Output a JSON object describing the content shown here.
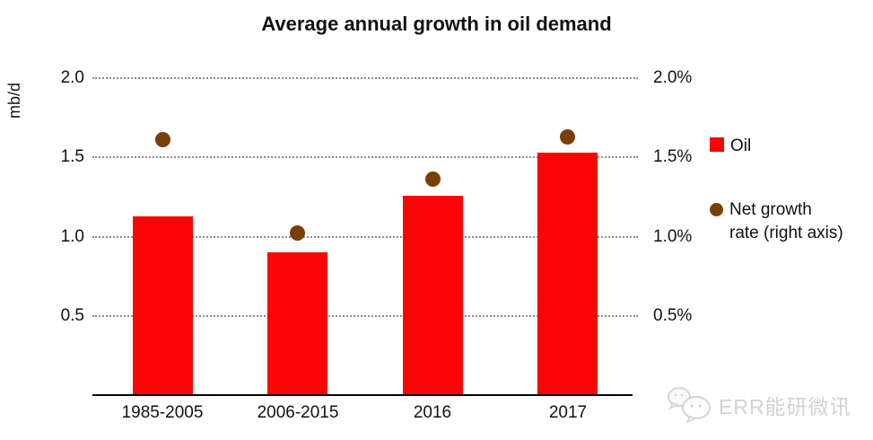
{
  "title": "Average annual growth in oil demand",
  "legend": {
    "oil_label": "Oil",
    "net_growth_line1": "Net growth",
    "net_growth_line2": "rate (right axis)"
  },
  "watermark": {
    "text": "ERR能研微讯",
    "logo": "wechat-icon"
  },
  "colors": {
    "bar": "#fa0505",
    "dot": "#7a3e06",
    "grid": "#8c8c8c",
    "axis": "#000000",
    "text": "#111111",
    "watermark": "#d2d2d2"
  },
  "chart_data": {
    "type": "bar",
    "subtype": "combo-bar-scatter",
    "categories": [
      "1985-2005",
      "2006-2015",
      "2016",
      "2017"
    ],
    "series": [
      {
        "name": "Oil",
        "type": "bar",
        "axis": "left",
        "color": "#fa0505",
        "values": [
          1.13,
          0.9,
          1.26,
          1.53
        ]
      },
      {
        "name": "Net growth rate (right axis)",
        "type": "scatter",
        "axis": "right",
        "color": "#7a3e06",
        "values": [
          1.61,
          1.02,
          1.36,
          1.63
        ]
      }
    ],
    "left_axis": {
      "unit": "mb/d",
      "range": [
        0,
        2.0
      ],
      "ticks": [
        {
          "label": "2.0",
          "value": 2.0
        },
        {
          "label": "1.5",
          "value": 1.5
        },
        {
          "label": "1.0",
          "value": 1.0
        },
        {
          "label": "0.5",
          "value": 0.5
        }
      ]
    },
    "right_axis": {
      "unit": "%",
      "range": [
        0,
        2.0
      ],
      "ticks": [
        {
          "label": "2.0%",
          "value": 2.0
        },
        {
          "label": "1.5%",
          "value": 1.5
        },
        {
          "label": "1.0%",
          "value": 1.0
        },
        {
          "label": "0.5%",
          "value": 0.5
        }
      ]
    },
    "grid": "horizontal-dotted",
    "legend_position": "right"
  }
}
